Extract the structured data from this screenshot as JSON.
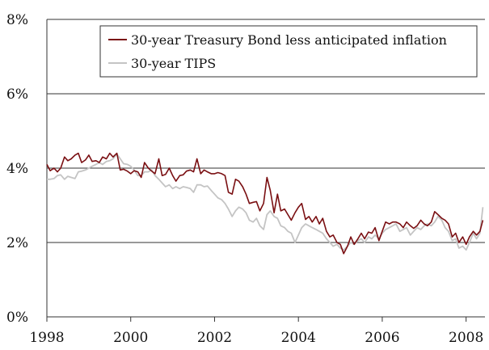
{
  "chart_data": {
    "type": "line",
    "title": "",
    "xlabel": "",
    "ylabel": "",
    "xlim": [
      1998,
      2008.45
    ],
    "ylim": [
      0,
      8
    ],
    "x_ticks": [
      1998,
      2000,
      2002,
      2004,
      2006,
      2008
    ],
    "x_tick_labels": [
      "1998",
      "2000",
      "2002",
      "2004",
      "2006",
      "2008"
    ],
    "y_ticks": [
      0,
      2,
      4,
      6,
      8
    ],
    "y_tick_labels": [
      "0%",
      "2%",
      "4%",
      "6%",
      "8%"
    ],
    "grid": "horizontal",
    "legend_position": "top-right",
    "series": [
      {
        "name": "30-year Treasury Bond less anticipated inflation",
        "color": "#7a0f12",
        "points": [
          [
            1998.0,
            4.1
          ],
          [
            1998.08,
            3.93
          ],
          [
            1998.17,
            4.0
          ],
          [
            1998.25,
            3.9
          ],
          [
            1998.33,
            4.0
          ],
          [
            1998.42,
            4.3
          ],
          [
            1998.5,
            4.2
          ],
          [
            1998.58,
            4.25
          ],
          [
            1998.67,
            4.35
          ],
          [
            1998.75,
            4.4
          ],
          [
            1998.83,
            4.15
          ],
          [
            1998.92,
            4.22
          ],
          [
            1999.0,
            4.35
          ],
          [
            1999.08,
            4.18
          ],
          [
            1999.17,
            4.2
          ],
          [
            1999.25,
            4.15
          ],
          [
            1999.33,
            4.3
          ],
          [
            1999.42,
            4.25
          ],
          [
            1999.5,
            4.4
          ],
          [
            1999.58,
            4.3
          ],
          [
            1999.67,
            4.4
          ],
          [
            1999.75,
            3.95
          ],
          [
            1999.83,
            3.97
          ],
          [
            1999.92,
            3.92
          ],
          [
            2000.0,
            3.85
          ],
          [
            2000.08,
            3.93
          ],
          [
            2000.17,
            3.9
          ],
          [
            2000.25,
            3.75
          ],
          [
            2000.33,
            4.15
          ],
          [
            2000.42,
            4.0
          ],
          [
            2000.5,
            3.92
          ],
          [
            2000.58,
            3.85
          ],
          [
            2000.67,
            4.25
          ],
          [
            2000.75,
            3.8
          ],
          [
            2000.83,
            3.83
          ],
          [
            2000.92,
            4.0
          ],
          [
            2001.0,
            3.8
          ],
          [
            2001.08,
            3.65
          ],
          [
            2001.17,
            3.8
          ],
          [
            2001.25,
            3.82
          ],
          [
            2001.33,
            3.92
          ],
          [
            2001.42,
            3.95
          ],
          [
            2001.5,
            3.9
          ],
          [
            2001.58,
            4.25
          ],
          [
            2001.67,
            3.85
          ],
          [
            2001.75,
            3.95
          ],
          [
            2001.83,
            3.9
          ],
          [
            2001.92,
            3.85
          ],
          [
            2002.0,
            3.85
          ],
          [
            2002.08,
            3.88
          ],
          [
            2002.17,
            3.85
          ],
          [
            2002.25,
            3.8
          ],
          [
            2002.33,
            3.35
          ],
          [
            2002.42,
            3.3
          ],
          [
            2002.5,
            3.7
          ],
          [
            2002.58,
            3.65
          ],
          [
            2002.67,
            3.5
          ],
          [
            2002.75,
            3.3
          ],
          [
            2002.83,
            3.05
          ],
          [
            2002.92,
            3.08
          ],
          [
            2003.0,
            3.1
          ],
          [
            2003.08,
            2.85
          ],
          [
            2003.17,
            3.05
          ],
          [
            2003.25,
            3.75
          ],
          [
            2003.33,
            3.4
          ],
          [
            2003.42,
            2.8
          ],
          [
            2003.5,
            3.3
          ],
          [
            2003.58,
            2.85
          ],
          [
            2003.67,
            2.9
          ],
          [
            2003.75,
            2.75
          ],
          [
            2003.83,
            2.6
          ],
          [
            2003.92,
            2.8
          ],
          [
            2004.0,
            2.95
          ],
          [
            2004.08,
            3.05
          ],
          [
            2004.17,
            2.62
          ],
          [
            2004.25,
            2.7
          ],
          [
            2004.33,
            2.55
          ],
          [
            2004.42,
            2.7
          ],
          [
            2004.5,
            2.5
          ],
          [
            2004.58,
            2.65
          ],
          [
            2004.67,
            2.3
          ],
          [
            2004.75,
            2.15
          ],
          [
            2004.83,
            2.2
          ],
          [
            2004.92,
            2.0
          ],
          [
            2005.0,
            1.95
          ],
          [
            2005.08,
            1.7
          ],
          [
            2005.17,
            1.9
          ],
          [
            2005.25,
            2.15
          ],
          [
            2005.33,
            1.95
          ],
          [
            2005.42,
            2.1
          ],
          [
            2005.5,
            2.25
          ],
          [
            2005.58,
            2.1
          ],
          [
            2005.67,
            2.28
          ],
          [
            2005.75,
            2.25
          ],
          [
            2005.83,
            2.4
          ],
          [
            2005.92,
            2.05
          ],
          [
            2006.0,
            2.3
          ],
          [
            2006.08,
            2.55
          ],
          [
            2006.17,
            2.5
          ],
          [
            2006.25,
            2.55
          ],
          [
            2006.33,
            2.55
          ],
          [
            2006.42,
            2.5
          ],
          [
            2006.5,
            2.4
          ],
          [
            2006.58,
            2.55
          ],
          [
            2006.67,
            2.45
          ],
          [
            2006.75,
            2.38
          ],
          [
            2006.83,
            2.45
          ],
          [
            2006.92,
            2.6
          ],
          [
            2007.0,
            2.5
          ],
          [
            2007.08,
            2.45
          ],
          [
            2007.17,
            2.55
          ],
          [
            2007.25,
            2.83
          ],
          [
            2007.33,
            2.75
          ],
          [
            2007.42,
            2.65
          ],
          [
            2007.5,
            2.6
          ],
          [
            2007.58,
            2.5
          ],
          [
            2007.67,
            2.15
          ],
          [
            2007.75,
            2.25
          ],
          [
            2007.83,
            2.0
          ],
          [
            2007.92,
            2.15
          ],
          [
            2008.0,
            1.95
          ],
          [
            2008.08,
            2.15
          ],
          [
            2008.17,
            2.3
          ],
          [
            2008.25,
            2.2
          ],
          [
            2008.33,
            2.3
          ],
          [
            2008.4,
            2.6
          ]
        ]
      },
      {
        "name": "30-year TIPS",
        "color": "#c4c4c4",
        "points": [
          [
            1998.0,
            3.7
          ],
          [
            1998.08,
            3.7
          ],
          [
            1998.17,
            3.72
          ],
          [
            1998.25,
            3.8
          ],
          [
            1998.33,
            3.82
          ],
          [
            1998.42,
            3.7
          ],
          [
            1998.5,
            3.78
          ],
          [
            1998.58,
            3.75
          ],
          [
            1998.67,
            3.72
          ],
          [
            1998.75,
            3.9
          ],
          [
            1998.83,
            3.92
          ],
          [
            1998.92,
            3.95
          ],
          [
            1999.0,
            4.0
          ],
          [
            1999.08,
            4.05
          ],
          [
            1999.17,
            4.1
          ],
          [
            1999.25,
            4.15
          ],
          [
            1999.33,
            4.1
          ],
          [
            1999.42,
            4.18
          ],
          [
            1999.5,
            4.2
          ],
          [
            1999.58,
            4.25
          ],
          [
            1999.67,
            4.38
          ],
          [
            1999.75,
            4.25
          ],
          [
            1999.83,
            4.12
          ],
          [
            1999.92,
            4.1
          ],
          [
            2000.0,
            4.05
          ],
          [
            2000.08,
            3.95
          ],
          [
            2000.17,
            3.8
          ],
          [
            2000.25,
            3.8
          ],
          [
            2000.33,
            3.9
          ],
          [
            2000.42,
            3.9
          ],
          [
            2000.5,
            3.95
          ],
          [
            2000.58,
            3.8
          ],
          [
            2000.67,
            3.7
          ],
          [
            2000.75,
            3.6
          ],
          [
            2000.83,
            3.5
          ],
          [
            2000.92,
            3.55
          ],
          [
            2001.0,
            3.45
          ],
          [
            2001.08,
            3.5
          ],
          [
            2001.17,
            3.45
          ],
          [
            2001.25,
            3.5
          ],
          [
            2001.33,
            3.48
          ],
          [
            2001.42,
            3.45
          ],
          [
            2001.5,
            3.35
          ],
          [
            2001.58,
            3.55
          ],
          [
            2001.67,
            3.55
          ],
          [
            2001.75,
            3.5
          ],
          [
            2001.83,
            3.52
          ],
          [
            2001.92,
            3.4
          ],
          [
            2002.0,
            3.3
          ],
          [
            2002.08,
            3.2
          ],
          [
            2002.17,
            3.15
          ],
          [
            2002.25,
            3.05
          ],
          [
            2002.33,
            2.9
          ],
          [
            2002.42,
            2.7
          ],
          [
            2002.5,
            2.85
          ],
          [
            2002.58,
            2.95
          ],
          [
            2002.67,
            2.9
          ],
          [
            2002.75,
            2.8
          ],
          [
            2002.83,
            2.6
          ],
          [
            2002.92,
            2.55
          ],
          [
            2003.0,
            2.65
          ],
          [
            2003.08,
            2.45
          ],
          [
            2003.17,
            2.35
          ],
          [
            2003.25,
            2.75
          ],
          [
            2003.33,
            2.85
          ],
          [
            2003.42,
            2.7
          ],
          [
            2003.5,
            2.65
          ],
          [
            2003.58,
            2.45
          ],
          [
            2003.67,
            2.4
          ],
          [
            2003.75,
            2.3
          ],
          [
            2003.83,
            2.25
          ],
          [
            2003.92,
            2.0
          ],
          [
            2004.0,
            2.2
          ],
          [
            2004.08,
            2.4
          ],
          [
            2004.17,
            2.5
          ],
          [
            2004.25,
            2.45
          ],
          [
            2004.33,
            2.4
          ],
          [
            2004.42,
            2.35
          ],
          [
            2004.5,
            2.3
          ],
          [
            2004.58,
            2.25
          ],
          [
            2004.67,
            2.1
          ],
          [
            2004.75,
            2.0
          ],
          [
            2004.83,
            1.9
          ],
          [
            2004.92,
            1.95
          ],
          [
            2005.0,
            1.85
          ],
          [
            2005.08,
            1.8
          ],
          [
            2005.17,
            1.9
          ],
          [
            2005.25,
            2.0
          ],
          [
            2005.33,
            1.95
          ],
          [
            2005.42,
            2.05
          ],
          [
            2005.5,
            2.1
          ],
          [
            2005.58,
            2.0
          ],
          [
            2005.67,
            2.15
          ],
          [
            2005.75,
            2.1
          ],
          [
            2005.83,
            2.2
          ],
          [
            2005.92,
            2.1
          ],
          [
            2006.0,
            2.25
          ],
          [
            2006.08,
            2.35
          ],
          [
            2006.17,
            2.4
          ],
          [
            2006.25,
            2.45
          ],
          [
            2006.33,
            2.5
          ],
          [
            2006.42,
            2.3
          ],
          [
            2006.5,
            2.35
          ],
          [
            2006.58,
            2.4
          ],
          [
            2006.67,
            2.2
          ],
          [
            2006.75,
            2.3
          ],
          [
            2006.83,
            2.4
          ],
          [
            2006.92,
            2.35
          ],
          [
            2007.0,
            2.45
          ],
          [
            2007.08,
            2.5
          ],
          [
            2007.17,
            2.45
          ],
          [
            2007.25,
            2.55
          ],
          [
            2007.33,
            2.7
          ],
          [
            2007.42,
            2.6
          ],
          [
            2007.5,
            2.4
          ],
          [
            2007.58,
            2.3
          ],
          [
            2007.67,
            2.05
          ],
          [
            2007.75,
            2.1
          ],
          [
            2007.83,
            1.85
          ],
          [
            2007.92,
            1.9
          ],
          [
            2008.0,
            1.8
          ],
          [
            2008.08,
            2.0
          ],
          [
            2008.17,
            2.25
          ],
          [
            2008.25,
            2.1
          ],
          [
            2008.33,
            2.25
          ],
          [
            2008.4,
            2.95
          ]
        ]
      }
    ]
  }
}
